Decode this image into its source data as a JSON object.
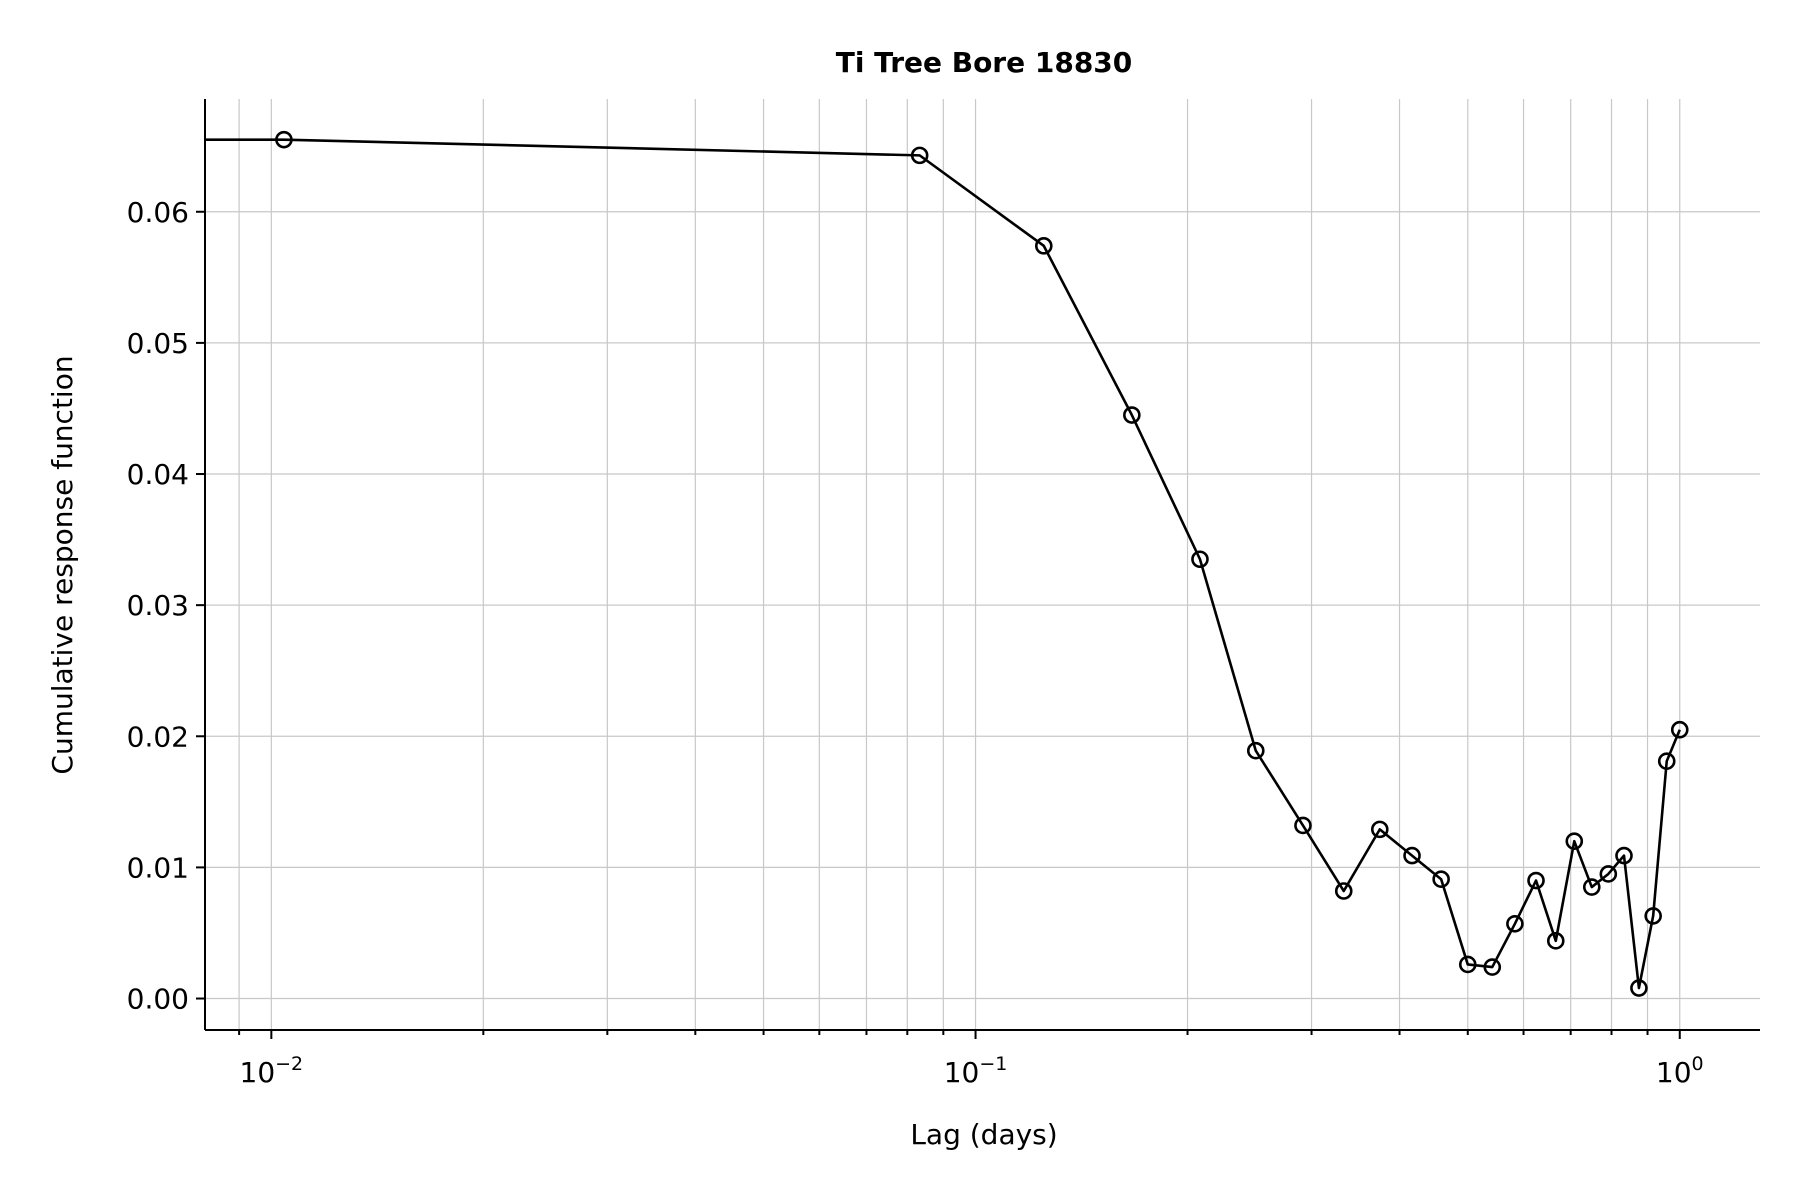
{
  "chart_data": {
    "type": "line",
    "title": "Ti Tree Bore 18830",
    "xlabel": "Lag (days)",
    "ylabel": "Cumulative response function",
    "x_scale": "log",
    "xlim": [
      0.00805,
      1.3
    ],
    "ylim": [
      -0.0024,
      0.0686
    ],
    "xticks": [
      {
        "value": 0.01,
        "base": "10",
        "exp": "−2"
      },
      {
        "value": 0.1,
        "base": "10",
        "exp": "−1"
      },
      {
        "value": 1,
        "base": "10",
        "exp": "0"
      }
    ],
    "yticks": [
      {
        "value": 0.0,
        "label": "0.00"
      },
      {
        "value": 0.01,
        "label": "0.01"
      },
      {
        "value": 0.02,
        "label": "0.02"
      },
      {
        "value": 0.03,
        "label": "0.03"
      },
      {
        "value": 0.04,
        "label": "0.04"
      },
      {
        "value": 0.05,
        "label": "0.05"
      },
      {
        "value": 0.06,
        "label": "0.06"
      }
    ],
    "grid": true,
    "series": [
      {
        "color": "#000000",
        "line_start": [
          0.00805,
          0.0655
        ],
        "points": [
          [
            0.01042,
            0.0655
          ],
          [
            0.0833,
            0.0643
          ],
          [
            0.125,
            0.0574
          ],
          [
            0.1667,
            0.0445
          ],
          [
            0.2083,
            0.0335
          ],
          [
            0.25,
            0.0189
          ],
          [
            0.2917,
            0.0132
          ],
          [
            0.3333,
            0.0082
          ],
          [
            0.375,
            0.0129
          ],
          [
            0.4167,
            0.0109
          ],
          [
            0.4583,
            0.0091
          ],
          [
            0.5,
            0.0026
          ],
          [
            0.5417,
            0.0024
          ],
          [
            0.5833,
            0.0057
          ],
          [
            0.625,
            0.009
          ],
          [
            0.6667,
            0.0044
          ],
          [
            0.7083,
            0.012
          ],
          [
            0.75,
            0.0085
          ],
          [
            0.7917,
            0.0095
          ],
          [
            0.8333,
            0.0109
          ],
          [
            0.875,
            0.0008
          ],
          [
            0.9167,
            0.0063
          ],
          [
            0.9583,
            0.0181
          ],
          [
            1.0,
            0.0205
          ]
        ]
      }
    ]
  }
}
